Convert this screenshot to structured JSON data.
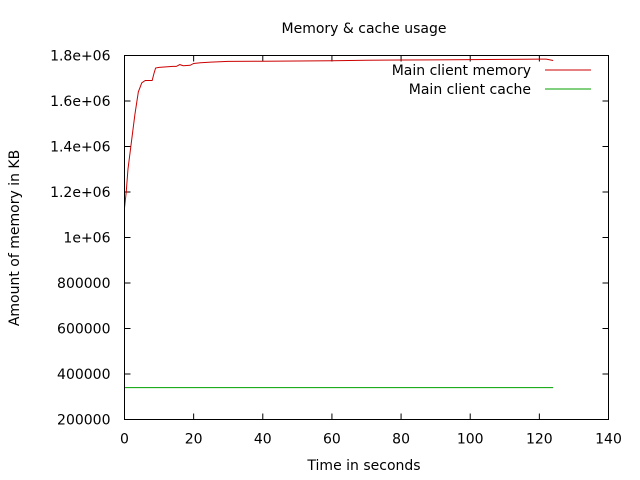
{
  "chart_data": {
    "type": "line",
    "title": "Memory & cache usage",
    "xlabel": "Time in seconds",
    "ylabel": "Amount of memory in KB",
    "xlim": [
      0,
      140
    ],
    "ylim": [
      200000,
      1800000
    ],
    "x_ticks": [
      {
        "value": 0,
        "label": "0"
      },
      {
        "value": 20,
        "label": "20"
      },
      {
        "value": 40,
        "label": "40"
      },
      {
        "value": 60,
        "label": "60"
      },
      {
        "value": 80,
        "label": "80"
      },
      {
        "value": 100,
        "label": "100"
      },
      {
        "value": 120,
        "label": "120"
      },
      {
        "value": 140,
        "label": "140"
      }
    ],
    "y_ticks": [
      {
        "value": 200000,
        "label": "200000"
      },
      {
        "value": 400000,
        "label": "400000"
      },
      {
        "value": 600000,
        "label": "600000"
      },
      {
        "value": 800000,
        "label": "800000"
      },
      {
        "value": 1000000,
        "label": "1e+06"
      },
      {
        "value": 1200000,
        "label": "1.2e+06"
      },
      {
        "value": 1400000,
        "label": "1.4e+06"
      },
      {
        "value": 1600000,
        "label": "1.6e+06"
      },
      {
        "value": 1800000,
        "label": "1.8e+06"
      }
    ],
    "grid": false,
    "legend_position": "top-right",
    "series": [
      {
        "name": "Main client memory",
        "color": "#cc0000",
        "points": [
          [
            0,
            1130000
          ],
          [
            0.5,
            1200000
          ],
          [
            1,
            1300000
          ],
          [
            2,
            1420000
          ],
          [
            3,
            1540000
          ],
          [
            4,
            1640000
          ],
          [
            5,
            1680000
          ],
          [
            6,
            1690000
          ],
          [
            7,
            1690000
          ],
          [
            8,
            1690000
          ],
          [
            8.5,
            1720000
          ],
          [
            9,
            1745000
          ],
          [
            10,
            1748000
          ],
          [
            12,
            1750000
          ],
          [
            14,
            1752000
          ],
          [
            15,
            1752000
          ],
          [
            16,
            1760000
          ],
          [
            17,
            1755000
          ],
          [
            19,
            1757000
          ],
          [
            20,
            1765000
          ],
          [
            22,
            1768000
          ],
          [
            25,
            1771000
          ],
          [
            30,
            1774000
          ],
          [
            40,
            1775000
          ],
          [
            50,
            1776000
          ],
          [
            60,
            1777000
          ],
          [
            70,
            1779000
          ],
          [
            80,
            1780000
          ],
          [
            90,
            1781000
          ],
          [
            100,
            1782000
          ],
          [
            110,
            1783000
          ],
          [
            120,
            1784000
          ],
          [
            122,
            1784000
          ],
          [
            124,
            1778000
          ]
        ]
      },
      {
        "name": "Main client cache",
        "color": "#00a000",
        "points": [
          [
            0,
            340000
          ],
          [
            124,
            340000
          ]
        ]
      }
    ]
  }
}
